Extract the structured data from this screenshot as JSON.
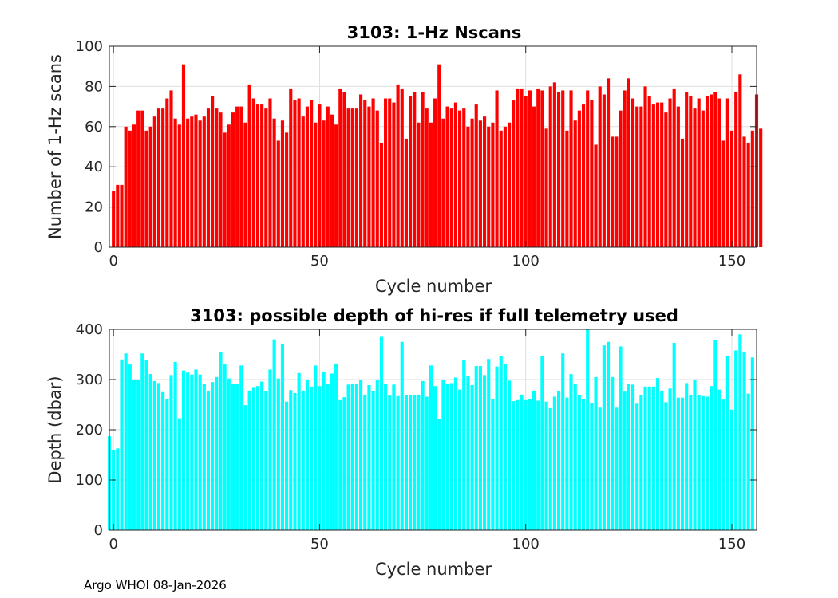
{
  "footer": "Argo WHOI 08-Jan-2026",
  "chart_data": [
    {
      "type": "bar",
      "title": "3103: 1-Hz Nscans",
      "xlabel": "Cycle number",
      "ylabel": "Number of 1-Hz scans",
      "xlim": [
        -1,
        156
      ],
      "ylim": [
        0,
        100
      ],
      "xticks": [
        0,
        50,
        100,
        150
      ],
      "yticks": [
        0,
        20,
        40,
        60,
        80,
        100
      ],
      "color": "#ff0000",
      "grid": true,
      "x_start": 0,
      "values": [
        28,
        31,
        31,
        60,
        58,
        61,
        68,
        68,
        58,
        60,
        65,
        69,
        69,
        74,
        78,
        64,
        61,
        91,
        64,
        65,
        66,
        63,
        65,
        69,
        75,
        69,
        67,
        57,
        61,
        67,
        70,
        70,
        62,
        81,
        74,
        71,
        71,
        69,
        74,
        64,
        53,
        63,
        57,
        79,
        73,
        74,
        65,
        70,
        73,
        62,
        71,
        63,
        70,
        66,
        61,
        79,
        77,
        69,
        69,
        69,
        76,
        73,
        70,
        74,
        68,
        52,
        74,
        74,
        72,
        81,
        79,
        54,
        75,
        77,
        62,
        77,
        69,
        62,
        74,
        91,
        64,
        70,
        69,
        72,
        68,
        69,
        60,
        64,
        71,
        63,
        65,
        60,
        62,
        78,
        58,
        60,
        62,
        73,
        79,
        79,
        75,
        78,
        70,
        79,
        78,
        59,
        80,
        82,
        77,
        78,
        58,
        78,
        63,
        68,
        71,
        78,
        73,
        51,
        80,
        76,
        84,
        55,
        55,
        68,
        78,
        84,
        74,
        70,
        70,
        80,
        75,
        71,
        72,
        72,
        67,
        74,
        79,
        70,
        54,
        77,
        75,
        69,
        74,
        68,
        75,
        76,
        77,
        74,
        53,
        74,
        58,
        77,
        86,
        55,
        52,
        58,
        76,
        59
      ]
    },
    {
      "type": "bar",
      "title": "3103: possible depth of hi-res if full telemetry used",
      "xlabel": "Cycle number",
      "ylabel": "Depth (dbar)",
      "xlim": [
        -1,
        156
      ],
      "ylim": [
        0,
        400
      ],
      "xticks": [
        0,
        50,
        100,
        150
      ],
      "yticks": [
        0,
        100,
        200,
        300,
        400
      ],
      "color": "#00ffff",
      "grid": true,
      "x_start": -1,
      "values": [
        187,
        160,
        163,
        340,
        352,
        330,
        300,
        300,
        352,
        338,
        311,
        297,
        293,
        275,
        262,
        309,
        335,
        223,
        318,
        314,
        310,
        320,
        310,
        292,
        277,
        295,
        305,
        355,
        330,
        302,
        291,
        291,
        328,
        249,
        278,
        285,
        287,
        296,
        277,
        320,
        380,
        302,
        370,
        256,
        279,
        273,
        313,
        278,
        299,
        286,
        328,
        287,
        316,
        291,
        312,
        332,
        259,
        265,
        290,
        292,
        292,
        300,
        270,
        289,
        277,
        300,
        385,
        292,
        268,
        290,
        267,
        375,
        269,
        270,
        269,
        270,
        297,
        266,
        328,
        287,
        222,
        299,
        292,
        293,
        304,
        280,
        339,
        308,
        289,
        327,
        327,
        309,
        341,
        262,
        326,
        346,
        331,
        298,
        257,
        259,
        270,
        259,
        262,
        278,
        258,
        346,
        256,
        243,
        266,
        277,
        352,
        264,
        311,
        292,
        269,
        261,
        400,
        253,
        305,
        244,
        368,
        375,
        305,
        244,
        366,
        276,
        292,
        290,
        252,
        269,
        286,
        286,
        286,
        303,
        278,
        255,
        282,
        373,
        264,
        264,
        293,
        270,
        300,
        269,
        267,
        266,
        287,
        379,
        280,
        260,
        347,
        240,
        358,
        390,
        355,
        272,
        344
      ]
    }
  ]
}
